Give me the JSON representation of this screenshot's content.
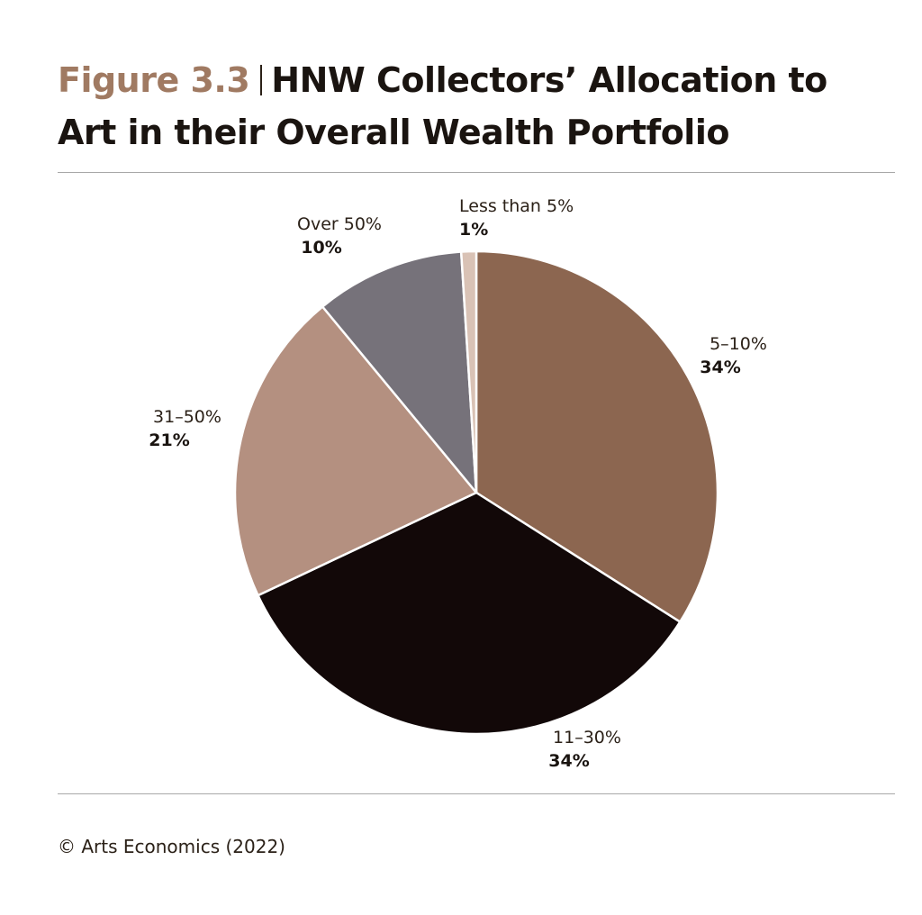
{
  "header": {
    "figure_number": "Figure 3.3",
    "title": "HNW Collectors’ Allocation to Art in their Overall Wealth Portfolio"
  },
  "chart_data": {
    "type": "pie",
    "title": "HNW Collectors’ Allocation to Art in their Overall Wealth Portfolio",
    "slices": [
      {
        "label": "5–10%",
        "value": 34,
        "value_label": "34%",
        "color": "#8c6650"
      },
      {
        "label": "11–30%",
        "value": 34,
        "value_label": "34%",
        "color": "#120808"
      },
      {
        "label": "31–50%",
        "value": 21,
        "value_label": "21%",
        "color": "#b49080"
      },
      {
        "label": "Over 50%",
        "value": 10,
        "value_label": "10%",
        "color": "#76727a"
      },
      {
        "label": "Less than 5%",
        "value": 1,
        "value_label": "1%",
        "color": "#d9c2b5"
      }
    ],
    "start": "12 o'clock",
    "direction": "clockwise",
    "legend": "none",
    "slice_separator_color": "#ffffff"
  },
  "footer": {
    "source": "© Arts Economics (2022)"
  }
}
